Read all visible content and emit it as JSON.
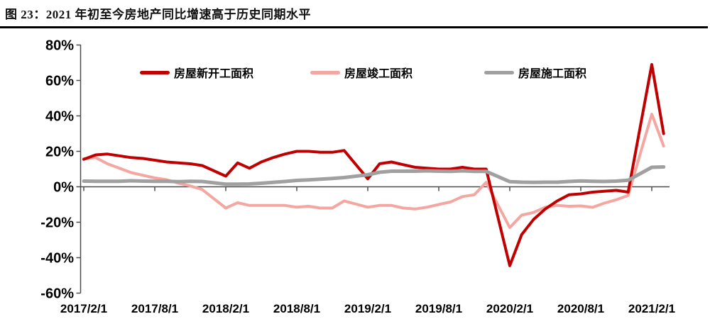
{
  "page": {
    "title": "图 23：2021 年初至今房地产同比增速高于历史同期水平"
  },
  "chart_data": {
    "type": "line",
    "title": "图 23：2021 年初至今房地产同比增速高于历史同期水平",
    "y_unit": "%",
    "ylim": [
      -60,
      80
    ],
    "y_ticks": [
      80,
      60,
      40,
      20,
      0,
      -20,
      -40,
      -60
    ],
    "x_tick_labels": [
      "2017/2/1",
      "2017/8/1",
      "2018/2/1",
      "2018/8/1",
      "2019/2/1",
      "2019/8/1",
      "2020/2/1",
      "2020/8/1",
      "2021/2/1"
    ],
    "grid": false,
    "legend_position": "top",
    "x": [
      "2017/2",
      "2017/3",
      "2017/4",
      "2017/5",
      "2017/6",
      "2017/7",
      "2017/8",
      "2017/9",
      "2017/10",
      "2017/11",
      "2017/12",
      "2018/2",
      "2018/3",
      "2018/4",
      "2018/5",
      "2018/6",
      "2018/7",
      "2018/8",
      "2018/9",
      "2018/10",
      "2018/11",
      "2018/12",
      "2019/2",
      "2019/3",
      "2019/4",
      "2019/5",
      "2019/6",
      "2019/7",
      "2019/8",
      "2019/9",
      "2019/10",
      "2019/11",
      "2019/12",
      "2020/2",
      "2020/3",
      "2020/4",
      "2020/5",
      "2020/6",
      "2020/7",
      "2020/8",
      "2020/9",
      "2020/10",
      "2020/11",
      "2020/12",
      "2021/2",
      "2021/3"
    ],
    "series": [
      {
        "name": "房屋新开工面积",
        "color": "#C00000",
        "values": [
          15.5,
          18,
          18.5,
          17.5,
          16.5,
          16,
          15,
          14,
          13.5,
          13,
          12,
          6,
          13.5,
          10.5,
          14,
          16.5,
          18.5,
          20,
          20,
          19.5,
          19.5,
          20.5,
          4.5,
          13,
          14,
          12.5,
          11,
          10.5,
          10,
          10,
          11,
          10,
          10,
          -44.5,
          -27,
          -18.5,
          -12.5,
          -8,
          -4.5,
          -4,
          -3,
          -2.5,
          -2,
          -3,
          69,
          30
        ]
      },
      {
        "name": "房屋竣工面积",
        "color": "#F4A6A0",
        "values": [
          15.8,
          16.5,
          13,
          10.5,
          8,
          6.5,
          5,
          4,
          2,
          0.5,
          -1.5,
          -12,
          -9,
          -10.5,
          -10.5,
          -10.5,
          -10.5,
          -11.5,
          -11,
          -12,
          -12,
          -8,
          -11.5,
          -10.5,
          -10.5,
          -12,
          -12.5,
          -11.5,
          -10,
          -8.5,
          -5.5,
          -4.5,
          2.5,
          -23,
          -16,
          -14.5,
          -11.5,
          -10.5,
          -11,
          -10.8,
          -11.6,
          -9.2,
          -7.3,
          -4.9,
          41,
          23
        ]
      },
      {
        "name": "房屋施工面积",
        "color": "#A0A0A0",
        "values": [
          3.2,
          3.1,
          3.1,
          3.1,
          3.4,
          3.2,
          3.1,
          3.1,
          2.9,
          3.1,
          3.0,
          1.5,
          1.5,
          1.6,
          2.0,
          2.5,
          3.0,
          3.6,
          3.9,
          4.3,
          4.7,
          5.2,
          6.8,
          8.2,
          8.8,
          8.8,
          8.8,
          9.0,
          8.8,
          8.7,
          9.0,
          8.7,
          8.7,
          2.9,
          2.6,
          2.5,
          2.6,
          2.6,
          3.0,
          3.3,
          3.1,
          3.0,
          3.2,
          3.7,
          11.0,
          11.2
        ]
      }
    ]
  }
}
